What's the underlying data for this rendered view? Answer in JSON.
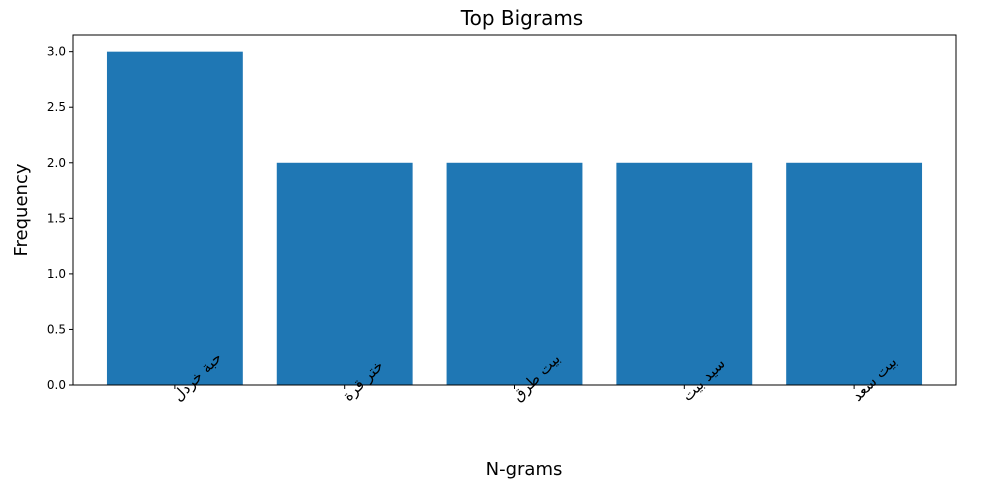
{
  "chart_data": {
    "type": "bar",
    "title": "Top Bigrams",
    "xlabel": "N-grams",
    "ylabel": "Frequency",
    "categories": [
      "حبة خردل",
      "ختر قرة",
      "بيت طرق",
      "سيد بيت",
      "بيت سعد"
    ],
    "values": [
      3,
      2,
      2,
      2,
      2
    ],
    "ylim": [
      0,
      3.15
    ],
    "yticks": [
      0.0,
      0.5,
      1.0,
      1.5,
      2.0,
      2.5,
      3.0
    ],
    "ytick_labels": [
      "0.0",
      "0.5",
      "1.0",
      "1.5",
      "2.0",
      "2.5",
      "3.0"
    ],
    "bar_color": "#1f77b4",
    "grid": false,
    "legend": "none"
  }
}
